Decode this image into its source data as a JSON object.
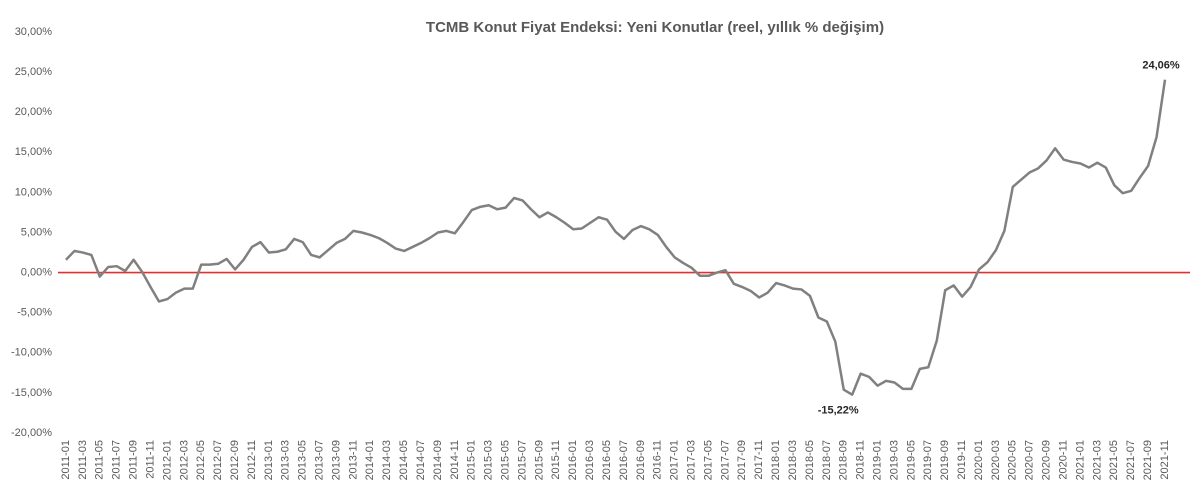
{
  "chart_data": {
    "type": "line",
    "title": "TCMB Konut Fiyat Endeksi: Yeni Konutlar (reel, yıllık % değişim)",
    "categories": [
      "2011-01",
      null,
      "2011-03",
      null,
      "2011-05",
      null,
      "2011-07",
      null,
      "2011-09",
      null,
      "2011-11",
      null,
      "2012-01",
      null,
      "2012-03",
      null,
      "2012-05",
      null,
      "2012-07",
      null,
      "2012-09",
      null,
      "2012-11",
      null,
      "2013-01",
      null,
      "2013-03",
      null,
      "2013-05",
      null,
      "2013-07",
      null,
      "2013-09",
      null,
      "2013-11",
      null,
      "2014-01",
      null,
      "2014-03",
      null,
      "2014-05",
      null,
      "2014-07",
      null,
      "2014-09",
      null,
      "2014-11",
      null,
      "2015-01",
      null,
      "2015-03",
      null,
      "2015-05",
      null,
      "2015-07",
      null,
      "2015-09",
      null,
      "2015-11",
      null,
      "2016-01",
      null,
      "2016-03",
      null,
      "2016-05",
      null,
      "2016-07",
      null,
      "2016-09",
      null,
      "2016-11",
      null,
      "2017-01",
      null,
      "2017-03",
      null,
      "2017-05",
      null,
      "2017-07",
      null,
      "2017-09",
      null,
      "2017-11",
      null,
      "2018-01",
      null,
      "2018-03",
      null,
      "2018-05",
      null,
      "2018-07",
      null,
      "2018-09",
      null,
      "2018-11",
      null,
      "2019-01",
      null,
      "2019-03",
      null,
      "2019-05",
      null,
      "2019-07",
      null,
      "2019-09",
      null,
      "2019-11",
      null,
      "2020-01",
      null,
      "2020-03",
      null,
      "2020-05",
      null,
      "2020-07",
      null,
      "2020-09",
      null,
      "2020-11",
      null,
      "2021-01",
      null,
      "2021-03",
      null,
      "2021-05",
      null,
      "2021-07",
      null,
      "2021-09",
      null,
      "2021-11"
    ],
    "series": [
      {
        "color": "#808080",
        "values": [
          1.6,
          2.7,
          2.5,
          2.2,
          -0.5,
          0.7,
          0.8,
          0.2,
          1.6,
          0.1,
          -1.8,
          -3.6,
          -3.3,
          -2.5,
          -2.0,
          -2.0,
          1.0,
          1.0,
          1.1,
          1.7,
          0.4,
          1.6,
          3.2,
          3.8,
          2.5,
          2.6,
          2.9,
          4.2,
          3.8,
          2.2,
          1.9,
          2.8,
          3.7,
          4.2,
          5.2,
          5.0,
          4.7,
          4.3,
          3.7,
          3.0,
          2.7,
          3.2,
          3.7,
          4.3,
          5.0,
          5.2,
          4.9,
          6.3,
          7.8,
          8.2,
          8.4,
          7.9,
          8.1,
          9.3,
          9.0,
          7.9,
          6.9,
          7.5,
          6.9,
          6.2,
          5.4,
          5.5,
          6.2,
          6.9,
          6.6,
          5.1,
          4.2,
          5.3,
          5.8,
          5.4,
          4.7,
          3.2,
          1.9,
          1.2,
          0.6,
          -0.4,
          -0.4,
          0.0,
          0.3,
          -1.4,
          -1.8,
          -2.3,
          -3.1,
          -2.5,
          -1.3,
          -1.6,
          -2.0,
          -2.1,
          -2.9,
          -5.6,
          -6.1,
          -8.6,
          -14.6,
          -15.22,
          -12.6,
          -13.0,
          -14.1,
          -13.5,
          -13.7,
          -14.5,
          -14.5,
          -12.0,
          -11.8,
          -8.5,
          -2.2,
          -1.6,
          -3.0,
          -1.8,
          0.4,
          1.3,
          2.8,
          5.2,
          10.7,
          11.6,
          12.5,
          13.0,
          14.0,
          15.5,
          14.1,
          13.8,
          13.6,
          13.1,
          13.7,
          13.1,
          10.9,
          9.9,
          10.2,
          11.8,
          13.3,
          16.9,
          24.06
        ],
        "value_labels": [
          null,
          null,
          null,
          null,
          null,
          null,
          null,
          null,
          null,
          null,
          null,
          null,
          null,
          null,
          null,
          null,
          null,
          null,
          null,
          null,
          null,
          null,
          null,
          null,
          null,
          null,
          null,
          null,
          null,
          null,
          null,
          null,
          null,
          null,
          null,
          null,
          null,
          null,
          null,
          null,
          null,
          null,
          null,
          null,
          null,
          null,
          null,
          null,
          null,
          null,
          null,
          null,
          null,
          null,
          null,
          null,
          null,
          null,
          null,
          null,
          null,
          null,
          null,
          null,
          null,
          null,
          null,
          null,
          null,
          null,
          null,
          null,
          null,
          null,
          null,
          null,
          null,
          null,
          null,
          null,
          null,
          null,
          null,
          null,
          null,
          null,
          null,
          null,
          null,
          null,
          null,
          null,
          null,
          "-15,22%",
          null,
          null,
          null,
          null,
          null,
          null,
          null,
          null,
          null,
          null,
          null,
          null,
          null,
          null,
          null,
          null,
          null,
          null,
          null,
          null,
          null,
          null,
          null,
          null,
          null,
          null,
          null,
          null,
          null,
          null,
          null,
          null,
          null,
          null,
          null,
          null,
          "24,06%"
        ]
      }
    ],
    "reference_line": {
      "value": 0,
      "color": "#e0302f"
    },
    "ylim": [
      -20,
      30
    ],
    "yticks": [
      {
        "value": -20,
        "label": "-20,00%"
      },
      {
        "value": -15,
        "label": "-15,00%"
      },
      {
        "value": -10,
        "label": "-10,00%"
      },
      {
        "value": -5,
        "label": "-5,00%"
      },
      {
        "value": 0,
        "label": "0,00%"
      },
      {
        "value": 5,
        "label": "5,00%"
      },
      {
        "value": 10,
        "label": "10,00%"
      },
      {
        "value": 15,
        "label": "15,00%"
      },
      {
        "value": 20,
        "label": "20,00%"
      },
      {
        "value": 25,
        "label": "25,00%"
      },
      {
        "value": 30,
        "label": "30,00%"
      }
    ]
  }
}
